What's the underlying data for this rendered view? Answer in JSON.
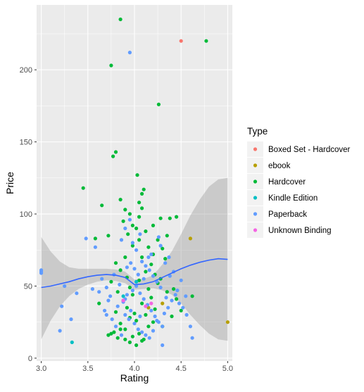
{
  "chart_data": {
    "type": "scatter",
    "title": "",
    "xlabel": "Rating",
    "ylabel": "Price",
    "xlim": [
      2.95,
      5.05
    ],
    "ylim": [
      -2,
      245
    ],
    "x_ticks": [
      "3.0",
      "3.5",
      "4.0",
      "4.5",
      "5.0"
    ],
    "y_ticks": [
      "0",
      "50",
      "100",
      "150",
      "200"
    ],
    "x_tick_values": [
      3.0,
      3.5,
      4.0,
      4.5,
      5.0
    ],
    "y_tick_values": [
      0,
      50,
      100,
      150,
      200
    ],
    "grid": true,
    "legend_title": "Type",
    "legend_position": "right",
    "series": [
      {
        "name": "Boxed Set - Hardcover",
        "color": "#F8766D",
        "points": [
          [
            4.5,
            220
          ]
        ]
      },
      {
        "name": "ebook",
        "color": "#B79F00",
        "points": [
          [
            4.6,
            83
          ],
          [
            5.0,
            25
          ],
          [
            4.15,
            35
          ],
          [
            4.3,
            38
          ]
        ]
      },
      {
        "name": "Hardcover",
        "color": "#00BA38",
        "points": [
          [
            3.85,
            235
          ],
          [
            4.77,
            220
          ],
          [
            3.75,
            203
          ],
          [
            4.26,
            176
          ],
          [
            3.8,
            143
          ],
          [
            3.77,
            140
          ],
          [
            4.03,
            127
          ],
          [
            3.45,
            118
          ],
          [
            4.1,
            117
          ],
          [
            4.08,
            114
          ],
          [
            3.85,
            110
          ],
          [
            4.05,
            108
          ],
          [
            3.65,
            106
          ],
          [
            3.9,
            103
          ],
          [
            4.08,
            104
          ],
          [
            3.95,
            100
          ],
          [
            4.05,
            98
          ],
          [
            4.28,
            97
          ],
          [
            4.38,
            97
          ],
          [
            4.45,
            98
          ],
          [
            3.88,
            95
          ],
          [
            3.98,
            92
          ],
          [
            4.02,
            90
          ],
          [
            4.2,
            92
          ],
          [
            4.12,
            88
          ],
          [
            3.93,
            86
          ],
          [
            3.72,
            85
          ],
          [
            3.58,
            83
          ],
          [
            4.05,
            82
          ],
          [
            4.25,
            82
          ],
          [
            4.35,
            85
          ],
          [
            3.98,
            78
          ],
          [
            4.15,
            77
          ],
          [
            4.3,
            76
          ],
          [
            4.2,
            72
          ],
          [
            3.9,
            70
          ],
          [
            4.08,
            70
          ],
          [
            4.33,
            69
          ],
          [
            3.8,
            66
          ],
          [
            4.18,
            65
          ],
          [
            3.85,
            61
          ],
          [
            4.12,
            60
          ],
          [
            4.22,
            58
          ],
          [
            3.92,
            56
          ],
          [
            4.05,
            54
          ],
          [
            3.75,
            53
          ],
          [
            4.25,
            52
          ],
          [
            3.95,
            49
          ],
          [
            4.15,
            48
          ],
          [
            3.82,
            46
          ],
          [
            4.35,
            46
          ],
          [
            3.98,
            44
          ],
          [
            4.18,
            42
          ],
          [
            4.45,
            41
          ],
          [
            3.88,
            40
          ],
          [
            4.08,
            38
          ],
          [
            3.62,
            38
          ],
          [
            3.92,
            35
          ],
          [
            4.22,
            34
          ],
          [
            3.8,
            32
          ],
          [
            4.12,
            30
          ],
          [
            3.95,
            28
          ],
          [
            4.02,
            26
          ],
          [
            3.85,
            24
          ],
          [
            4.15,
            22
          ],
          [
            3.9,
            20
          ],
          [
            3.78,
            18
          ],
          [
            4.05,
            17
          ],
          [
            3.72,
            16
          ],
          [
            3.98,
            15
          ],
          [
            3.82,
            14
          ],
          [
            3.9,
            13
          ],
          [
            3.95,
            11
          ],
          [
            4.1,
            13
          ],
          [
            3.75,
            17
          ],
          [
            4.3,
            22
          ],
          [
            4.4,
            29
          ],
          [
            4.5,
            33
          ],
          [
            4.62,
            43
          ],
          [
            4.28,
            55
          ],
          [
            4.42,
            48
          ],
          [
            4.08,
            12
          ],
          [
            3.85,
            20
          ],
          [
            4.0,
            31
          ],
          [
            4.2,
            25
          ],
          [
            4.02,
            9
          ]
        ]
      },
      {
        "name": "Kindle Edition",
        "color": "#00BFC4",
        "points": [
          [
            3.33,
            11
          ],
          [
            4.02,
            53
          ],
          [
            3.88,
            43
          ]
        ]
      },
      {
        "name": "Paperback",
        "color": "#619CFF",
        "points": [
          [
            3.95,
            212
          ],
          [
            3.0,
            61
          ],
          [
            3.0,
            60
          ],
          [
            3.0,
            59
          ],
          [
            3.48,
            83
          ],
          [
            3.58,
            77
          ],
          [
            3.25,
            50
          ],
          [
            3.38,
            45
          ],
          [
            3.55,
            48
          ],
          [
            3.62,
            46
          ],
          [
            3.22,
            36
          ],
          [
            3.32,
            27
          ],
          [
            3.2,
            19
          ],
          [
            3.72,
            40
          ],
          [
            3.68,
            33
          ],
          [
            3.65,
            55
          ],
          [
            3.78,
            58
          ],
          [
            3.82,
            36
          ],
          [
            3.88,
            39
          ],
          [
            3.92,
            44
          ],
          [
            3.98,
            47
          ],
          [
            4.02,
            50
          ],
          [
            4.06,
            45
          ],
          [
            4.1,
            41
          ],
          [
            4.14,
            37
          ],
          [
            4.18,
            33
          ],
          [
            4.22,
            29
          ],
          [
            4.26,
            25
          ],
          [
            4.3,
            22
          ],
          [
            3.9,
            30
          ],
          [
            3.94,
            27
          ],
          [
            4.0,
            24
          ],
          [
            4.04,
            20
          ],
          [
            4.08,
            18
          ],
          [
            4.12,
            16
          ],
          [
            4.16,
            14
          ],
          [
            4.2,
            19
          ],
          [
            4.24,
            26
          ],
          [
            3.86,
            16
          ],
          [
            3.8,
            22
          ],
          [
            3.76,
            27
          ],
          [
            3.7,
            30
          ],
          [
            4.32,
            31
          ],
          [
            4.36,
            35
          ],
          [
            4.4,
            40
          ],
          [
            4.44,
            44
          ],
          [
            4.48,
            38
          ],
          [
            4.52,
            35
          ],
          [
            4.56,
            30
          ],
          [
            4.28,
            49
          ],
          [
            4.24,
            53
          ],
          [
            4.2,
            57
          ],
          [
            4.16,
            61
          ],
          [
            4.12,
            64
          ],
          [
            4.08,
            67
          ],
          [
            3.96,
            66
          ],
          [
            3.92,
            63
          ],
          [
            4.04,
            58
          ],
          [
            4.0,
            62
          ],
          [
            4.33,
            66
          ],
          [
            4.37,
            70
          ],
          [
            4.18,
            72
          ],
          [
            4.02,
            75
          ],
          [
            3.98,
            80
          ],
          [
            4.06,
            86
          ],
          [
            3.9,
            90
          ],
          [
            3.95,
            96
          ],
          [
            4.28,
            78
          ],
          [
            4.6,
            22
          ],
          [
            4.62,
            14
          ],
          [
            4.55,
            43
          ],
          [
            4.46,
            47
          ],
          [
            3.84,
            51
          ],
          [
            3.74,
            43
          ],
          [
            3.7,
            49
          ],
          [
            4.38,
            57
          ],
          [
            4.42,
            60
          ],
          [
            4.5,
            54
          ],
          [
            3.9,
            41
          ],
          [
            4.1,
            55
          ],
          [
            4.15,
            70
          ],
          [
            4.26,
            84
          ],
          [
            3.86,
            82
          ],
          [
            4.3,
            9
          ],
          [
            3.96,
            33
          ],
          [
            4.06,
            29
          ],
          [
            4.34,
            42
          ]
        ]
      },
      {
        "name": "Unknown Binding",
        "color": "#F564E3",
        "points": [
          [
            4.12,
            36
          ],
          [
            3.88,
            40
          ],
          [
            4.18,
            38
          ]
        ]
      }
    ],
    "smooth": {
      "name": "loess",
      "color": "#3366FF",
      "points": [
        [
          3.0,
          49
        ],
        [
          3.1,
          50
        ],
        [
          3.2,
          51.5
        ],
        [
          3.3,
          53
        ],
        [
          3.4,
          55
        ],
        [
          3.5,
          56.5
        ],
        [
          3.6,
          57.5
        ],
        [
          3.7,
          58
        ],
        [
          3.8,
          57.5
        ],
        [
          3.9,
          56
        ],
        [
          4.0,
          51
        ],
        [
          4.1,
          51.5
        ],
        [
          4.2,
          53
        ],
        [
          4.3,
          56
        ],
        [
          4.4,
          59
        ],
        [
          4.5,
          62
        ],
        [
          4.6,
          64.5
        ],
        [
          4.7,
          66.5
        ],
        [
          4.8,
          68
        ],
        [
          4.9,
          69
        ],
        [
          5.0,
          68.5
        ]
      ],
      "lower": [
        [
          3.0,
          13
        ],
        [
          3.1,
          26
        ],
        [
          3.2,
          36
        ],
        [
          3.3,
          43
        ],
        [
          3.4,
          48
        ],
        [
          3.5,
          51
        ],
        [
          3.6,
          53
        ],
        [
          3.7,
          54
        ],
        [
          3.8,
          53.5
        ],
        [
          3.9,
          52
        ],
        [
          4.0,
          47.5
        ],
        [
          4.1,
          48
        ],
        [
          4.2,
          48.5
        ],
        [
          4.3,
          47
        ],
        [
          4.4,
          44
        ],
        [
          4.5,
          38
        ],
        [
          4.6,
          30
        ],
        [
          4.7,
          23
        ],
        [
          4.8,
          17
        ],
        [
          4.9,
          13
        ],
        [
          5.0,
          12
        ]
      ],
      "upper": [
        [
          3.0,
          84
        ],
        [
          3.1,
          74
        ],
        [
          3.2,
          67
        ],
        [
          3.3,
          63
        ],
        [
          3.4,
          62
        ],
        [
          3.5,
          62
        ],
        [
          3.6,
          62
        ],
        [
          3.7,
          62
        ],
        [
          3.8,
          61.5
        ],
        [
          3.9,
          60
        ],
        [
          4.0,
          54.5
        ],
        [
          4.1,
          55
        ],
        [
          4.2,
          57.5
        ],
        [
          4.3,
          65
        ],
        [
          4.4,
          74
        ],
        [
          4.5,
          86
        ],
        [
          4.6,
          99
        ],
        [
          4.7,
          110
        ],
        [
          4.8,
          119
        ],
        [
          4.9,
          124
        ],
        [
          5.0,
          125
        ]
      ]
    }
  }
}
